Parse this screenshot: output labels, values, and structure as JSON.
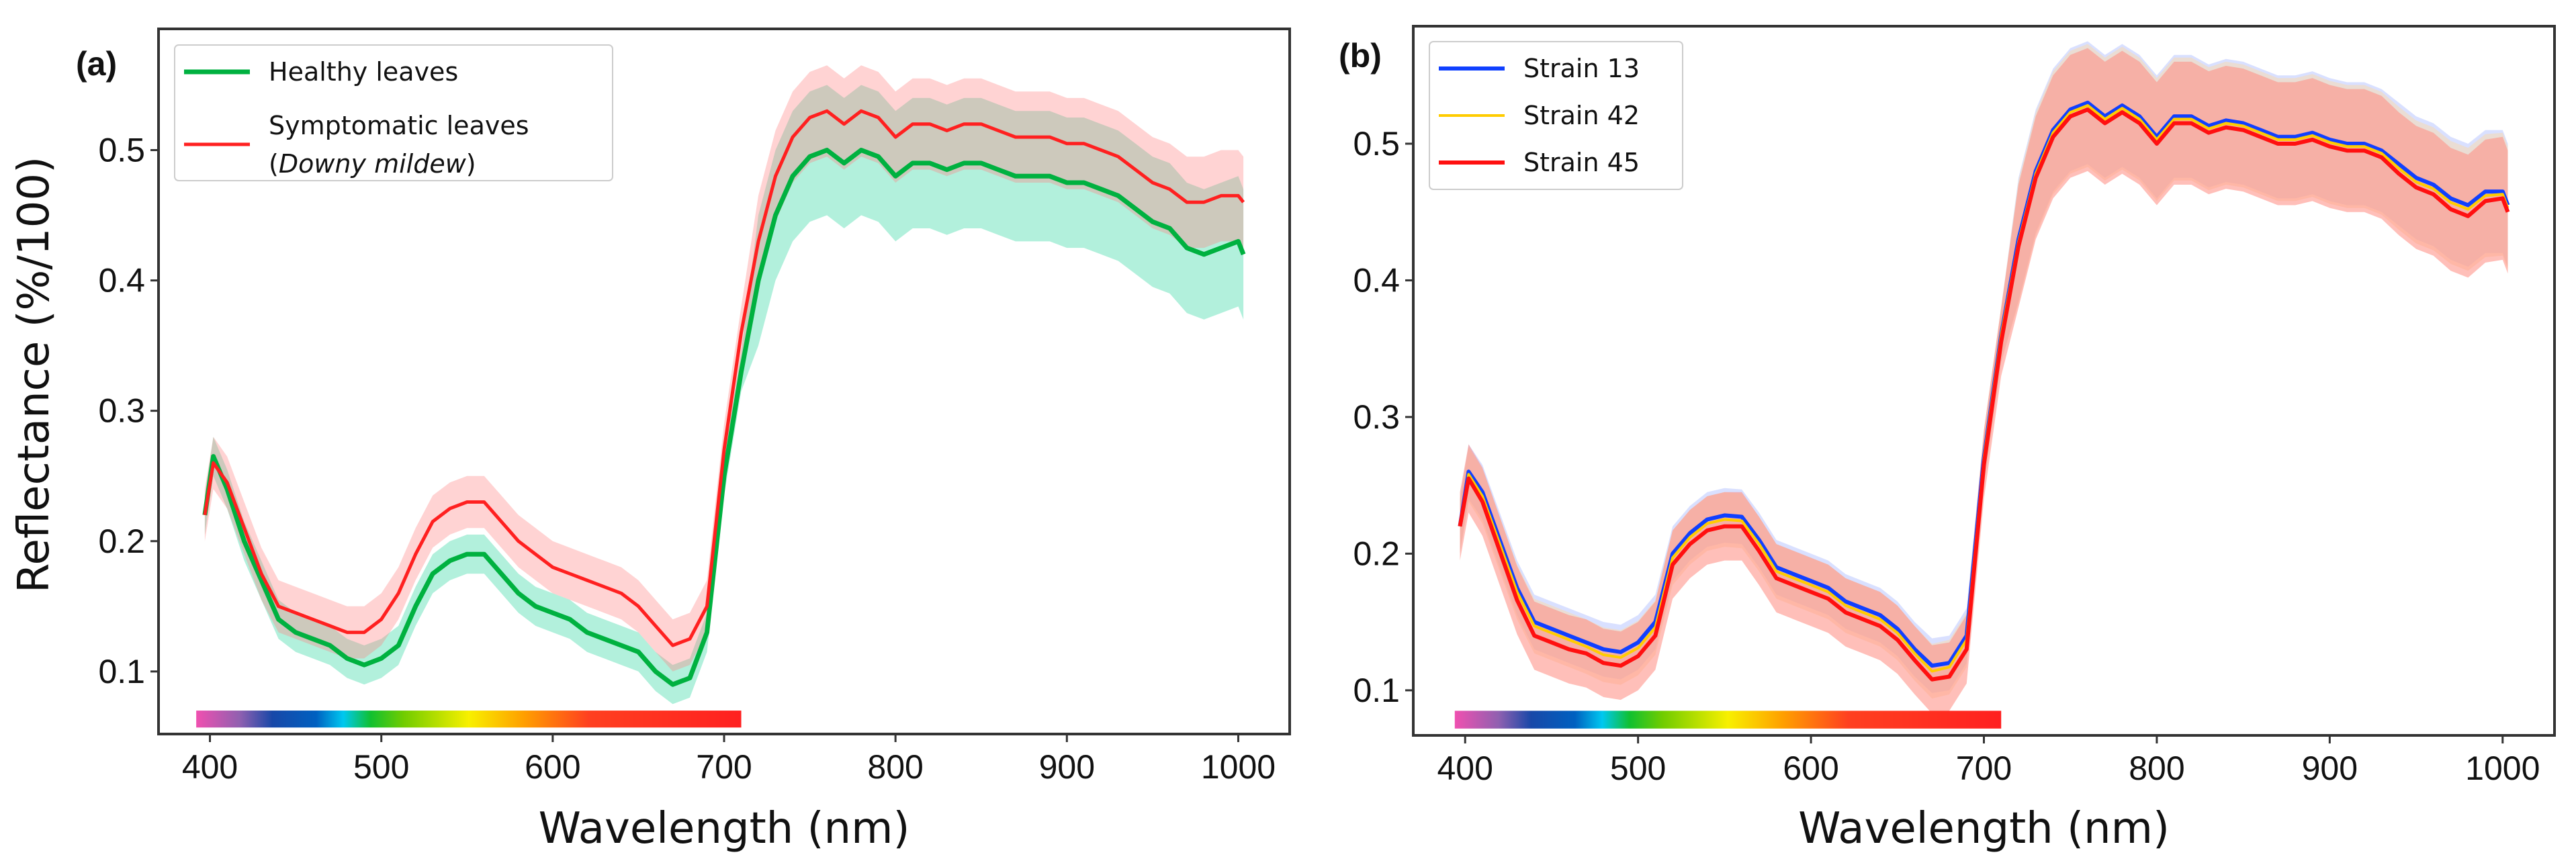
{
  "chart_data": [
    {
      "type": "line",
      "panel_label": "(a)",
      "xlabel": "Wavelength (nm)",
      "ylabel": "Reflectance (%/100)",
      "xlim": [
        370,
        1030
      ],
      "ylim": [
        0.052,
        0.593
      ],
      "xticks": [
        400,
        500,
        600,
        700,
        800,
        900,
        1000
      ],
      "yticks": [
        0.1,
        0.2,
        0.3,
        0.4,
        0.5
      ],
      "legend_position": "top-left",
      "spectrum_bar": {
        "from_nm": 392,
        "to_nm": 710,
        "y_range": [
          0.057,
          0.07
        ]
      },
      "x": [
        397,
        402,
        410,
        420,
        430,
        440,
        450,
        460,
        470,
        480,
        490,
        500,
        510,
        520,
        530,
        540,
        550,
        560,
        570,
        580,
        590,
        600,
        610,
        620,
        630,
        640,
        650,
        660,
        670,
        680,
        690,
        700,
        710,
        720,
        730,
        740,
        750,
        760,
        770,
        780,
        790,
        800,
        810,
        820,
        830,
        840,
        850,
        860,
        870,
        880,
        890,
        900,
        910,
        920,
        930,
        940,
        950,
        960,
        970,
        980,
        990,
        1000,
        1003
      ],
      "series": [
        {
          "name": "Healthy leaves",
          "name_italic": "",
          "color": "#00b140",
          "band_color": "#3fd9a8",
          "band_opacity": 0.4,
          "line_width": 7,
          "std_visible": 0.015,
          "std_nir": 0.05,
          "values": [
            0.22,
            0.265,
            0.24,
            0.2,
            0.17,
            0.14,
            0.13,
            0.125,
            0.12,
            0.11,
            0.105,
            0.11,
            0.12,
            0.15,
            0.175,
            0.185,
            0.19,
            0.19,
            0.175,
            0.16,
            0.15,
            0.145,
            0.14,
            0.13,
            0.125,
            0.12,
            0.115,
            0.1,
            0.09,
            0.095,
            0.13,
            0.25,
            0.33,
            0.4,
            0.45,
            0.48,
            0.495,
            0.5,
            0.49,
            0.5,
            0.495,
            0.48,
            0.49,
            0.49,
            0.485,
            0.49,
            0.49,
            0.485,
            0.48,
            0.48,
            0.48,
            0.475,
            0.475,
            0.47,
            0.465,
            0.455,
            0.445,
            0.44,
            0.425,
            0.42,
            0.425,
            0.43,
            0.42
          ]
        },
        {
          "name": "Symptomatic leaves",
          "name_italic": "Downy mildew",
          "color": "#ff2020",
          "band_color": "#ff8080",
          "band_opacity": 0.35,
          "line_width": 5,
          "std_visible": 0.02,
          "std_nir": 0.035,
          "values": [
            0.22,
            0.26,
            0.245,
            0.21,
            0.175,
            0.15,
            0.145,
            0.14,
            0.135,
            0.13,
            0.13,
            0.14,
            0.16,
            0.19,
            0.215,
            0.225,
            0.23,
            0.23,
            0.215,
            0.2,
            0.19,
            0.18,
            0.175,
            0.17,
            0.165,
            0.16,
            0.15,
            0.135,
            0.12,
            0.125,
            0.15,
            0.27,
            0.36,
            0.43,
            0.48,
            0.51,
            0.525,
            0.53,
            0.52,
            0.53,
            0.525,
            0.51,
            0.52,
            0.52,
            0.515,
            0.52,
            0.52,
            0.515,
            0.51,
            0.51,
            0.51,
            0.505,
            0.505,
            0.5,
            0.495,
            0.485,
            0.475,
            0.47,
            0.46,
            0.46,
            0.465,
            0.465,
            0.46
          ]
        }
      ]
    },
    {
      "type": "line",
      "panel_label": "(b)",
      "xlabel": "Wavelength (nm)",
      "ylabel": "",
      "xlim": [
        370,
        1030
      ],
      "ylim": [
        0.067,
        0.586
      ],
      "xticks": [
        400,
        500,
        600,
        700,
        800,
        900,
        1000
      ],
      "yticks": [
        0.1,
        0.2,
        0.3,
        0.4,
        0.5
      ],
      "legend_position": "top-left",
      "spectrum_bar": {
        "from_nm": 394,
        "to_nm": 710,
        "y_range": [
          0.072,
          0.085
        ]
      },
      "x": [
        397,
        402,
        410,
        420,
        430,
        440,
        450,
        460,
        470,
        480,
        490,
        500,
        510,
        520,
        530,
        540,
        550,
        560,
        570,
        580,
        590,
        600,
        610,
        620,
        630,
        640,
        650,
        660,
        670,
        680,
        690,
        700,
        710,
        720,
        730,
        740,
        750,
        760,
        770,
        780,
        790,
        800,
        810,
        820,
        830,
        840,
        850,
        860,
        870,
        880,
        890,
        900,
        910,
        920,
        930,
        940,
        950,
        960,
        970,
        980,
        990,
        1000,
        1003
      ],
      "series": [
        {
          "name": "Strain 13",
          "color": "#1040ff",
          "band_color": "#aabbff",
          "band_opacity": 0.45,
          "line_width": 6,
          "std_visible": 0.02,
          "std_nir": 0.045,
          "values": [
            0.22,
            0.26,
            0.245,
            0.21,
            0.175,
            0.15,
            0.145,
            0.14,
            0.135,
            0.13,
            0.128,
            0.135,
            0.15,
            0.2,
            0.215,
            0.225,
            0.228,
            0.227,
            0.21,
            0.19,
            0.185,
            0.18,
            0.175,
            0.165,
            0.16,
            0.155,
            0.145,
            0.13,
            0.118,
            0.12,
            0.14,
            0.27,
            0.36,
            0.43,
            0.48,
            0.51,
            0.525,
            0.53,
            0.52,
            0.528,
            0.52,
            0.505,
            0.52,
            0.52,
            0.513,
            0.517,
            0.515,
            0.51,
            0.505,
            0.505,
            0.508,
            0.503,
            0.5,
            0.5,
            0.495,
            0.485,
            0.475,
            0.47,
            0.46,
            0.455,
            0.465,
            0.465,
            0.455
          ]
        },
        {
          "name": "Strain 42",
          "color": "#ffcc00",
          "band_color": "#ffd9a0",
          "band_opacity": 0.45,
          "line_width": 4,
          "std_visible": 0.02,
          "std_nir": 0.045,
          "values": [
            0.22,
            0.258,
            0.242,
            0.207,
            0.172,
            0.147,
            0.142,
            0.137,
            0.132,
            0.126,
            0.124,
            0.131,
            0.146,
            0.197,
            0.212,
            0.222,
            0.225,
            0.224,
            0.207,
            0.187,
            0.182,
            0.177,
            0.172,
            0.162,
            0.157,
            0.152,
            0.142,
            0.127,
            0.114,
            0.117,
            0.137,
            0.27,
            0.36,
            0.428,
            0.478,
            0.508,
            0.523,
            0.528,
            0.518,
            0.526,
            0.518,
            0.503,
            0.518,
            0.518,
            0.511,
            0.515,
            0.513,
            0.508,
            0.503,
            0.503,
            0.506,
            0.501,
            0.498,
            0.498,
            0.493,
            0.482,
            0.472,
            0.467,
            0.457,
            0.452,
            0.462,
            0.463,
            0.453
          ]
        },
        {
          "name": "Strain 45",
          "color": "#ff1010",
          "band_color": "#ff8a80",
          "band_opacity": 0.55,
          "line_width": 6,
          "std_visible": 0.025,
          "std_nir": 0.045,
          "values": [
            0.22,
            0.255,
            0.238,
            0.202,
            0.166,
            0.14,
            0.135,
            0.13,
            0.127,
            0.12,
            0.118,
            0.125,
            0.14,
            0.192,
            0.207,
            0.217,
            0.22,
            0.22,
            0.202,
            0.182,
            0.177,
            0.172,
            0.167,
            0.157,
            0.152,
            0.147,
            0.137,
            0.122,
            0.108,
            0.11,
            0.13,
            0.265,
            0.355,
            0.425,
            0.475,
            0.505,
            0.52,
            0.525,
            0.515,
            0.523,
            0.515,
            0.5,
            0.515,
            0.515,
            0.508,
            0.512,
            0.51,
            0.505,
            0.5,
            0.5,
            0.503,
            0.498,
            0.495,
            0.495,
            0.49,
            0.478,
            0.468,
            0.463,
            0.452,
            0.447,
            0.458,
            0.46,
            0.45
          ]
        }
      ]
    }
  ]
}
